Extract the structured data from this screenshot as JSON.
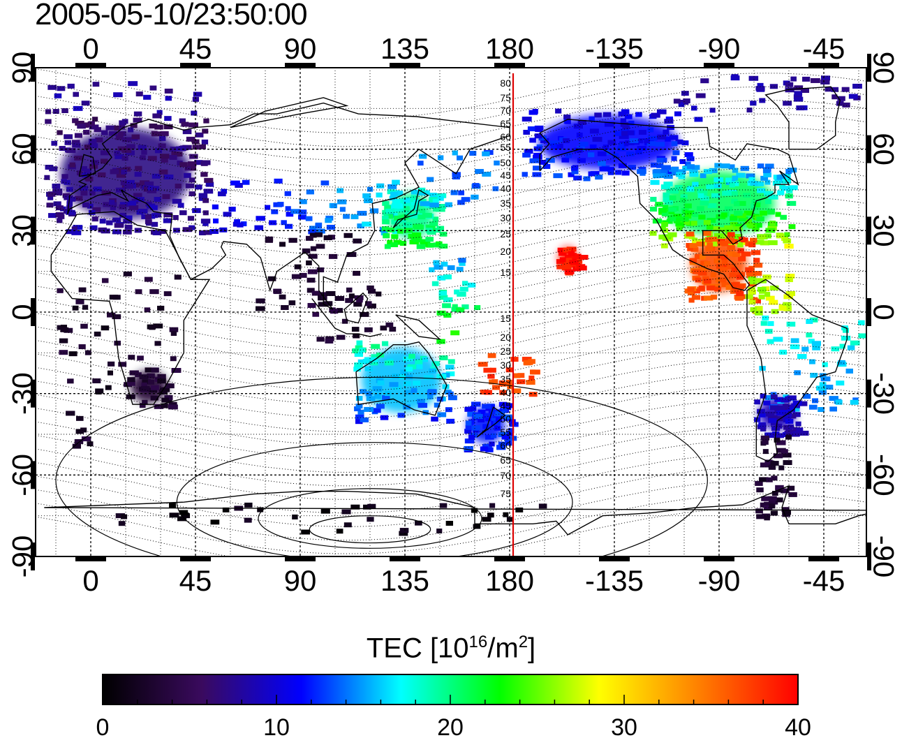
{
  "title": "2005-05-10/23:50:00",
  "map": {
    "top_axis_labels": [
      "0",
      "45",
      "90",
      "135",
      "180",
      "-135",
      "-90",
      "-45"
    ],
    "bottom_axis_labels": [
      "0",
      "45",
      "90",
      "135",
      "180",
      "-135",
      "-90",
      "-45"
    ],
    "left_axis_labels": [
      "90",
      "60",
      "30",
      "0",
      "-30",
      "-60",
      "-90"
    ],
    "right_axis_labels": [
      "90",
      "60",
      "30",
      "0",
      "-30",
      "-60",
      "-90"
    ],
    "meridian_marker_labels": [
      "80",
      "75",
      "70",
      "65",
      "60",
      "55",
      "50",
      "45",
      "40",
      "35",
      "30",
      "25",
      "20",
      "15",
      "15",
      "20",
      "25",
      "30",
      "35",
      "40",
      "45",
      "50",
      "55",
      "60",
      "65",
      "70",
      "75"
    ],
    "marker_meridian_color": "#dd0000"
  },
  "colorbar": {
    "title_prefix": "TEC  [10",
    "title_exp": "16",
    "title_mid": "/m",
    "title_exp2": "2",
    "title_suffix": "]",
    "tick_labels": [
      "0",
      "10",
      "20",
      "30",
      "40"
    ],
    "range": [
      0,
      40
    ],
    "colormap": [
      "#000000",
      "#3a0a5e",
      "#0000ff",
      "#00ffff",
      "#00ff00",
      "#ffff00",
      "#ff8000",
      "#ff0000"
    ]
  }
}
